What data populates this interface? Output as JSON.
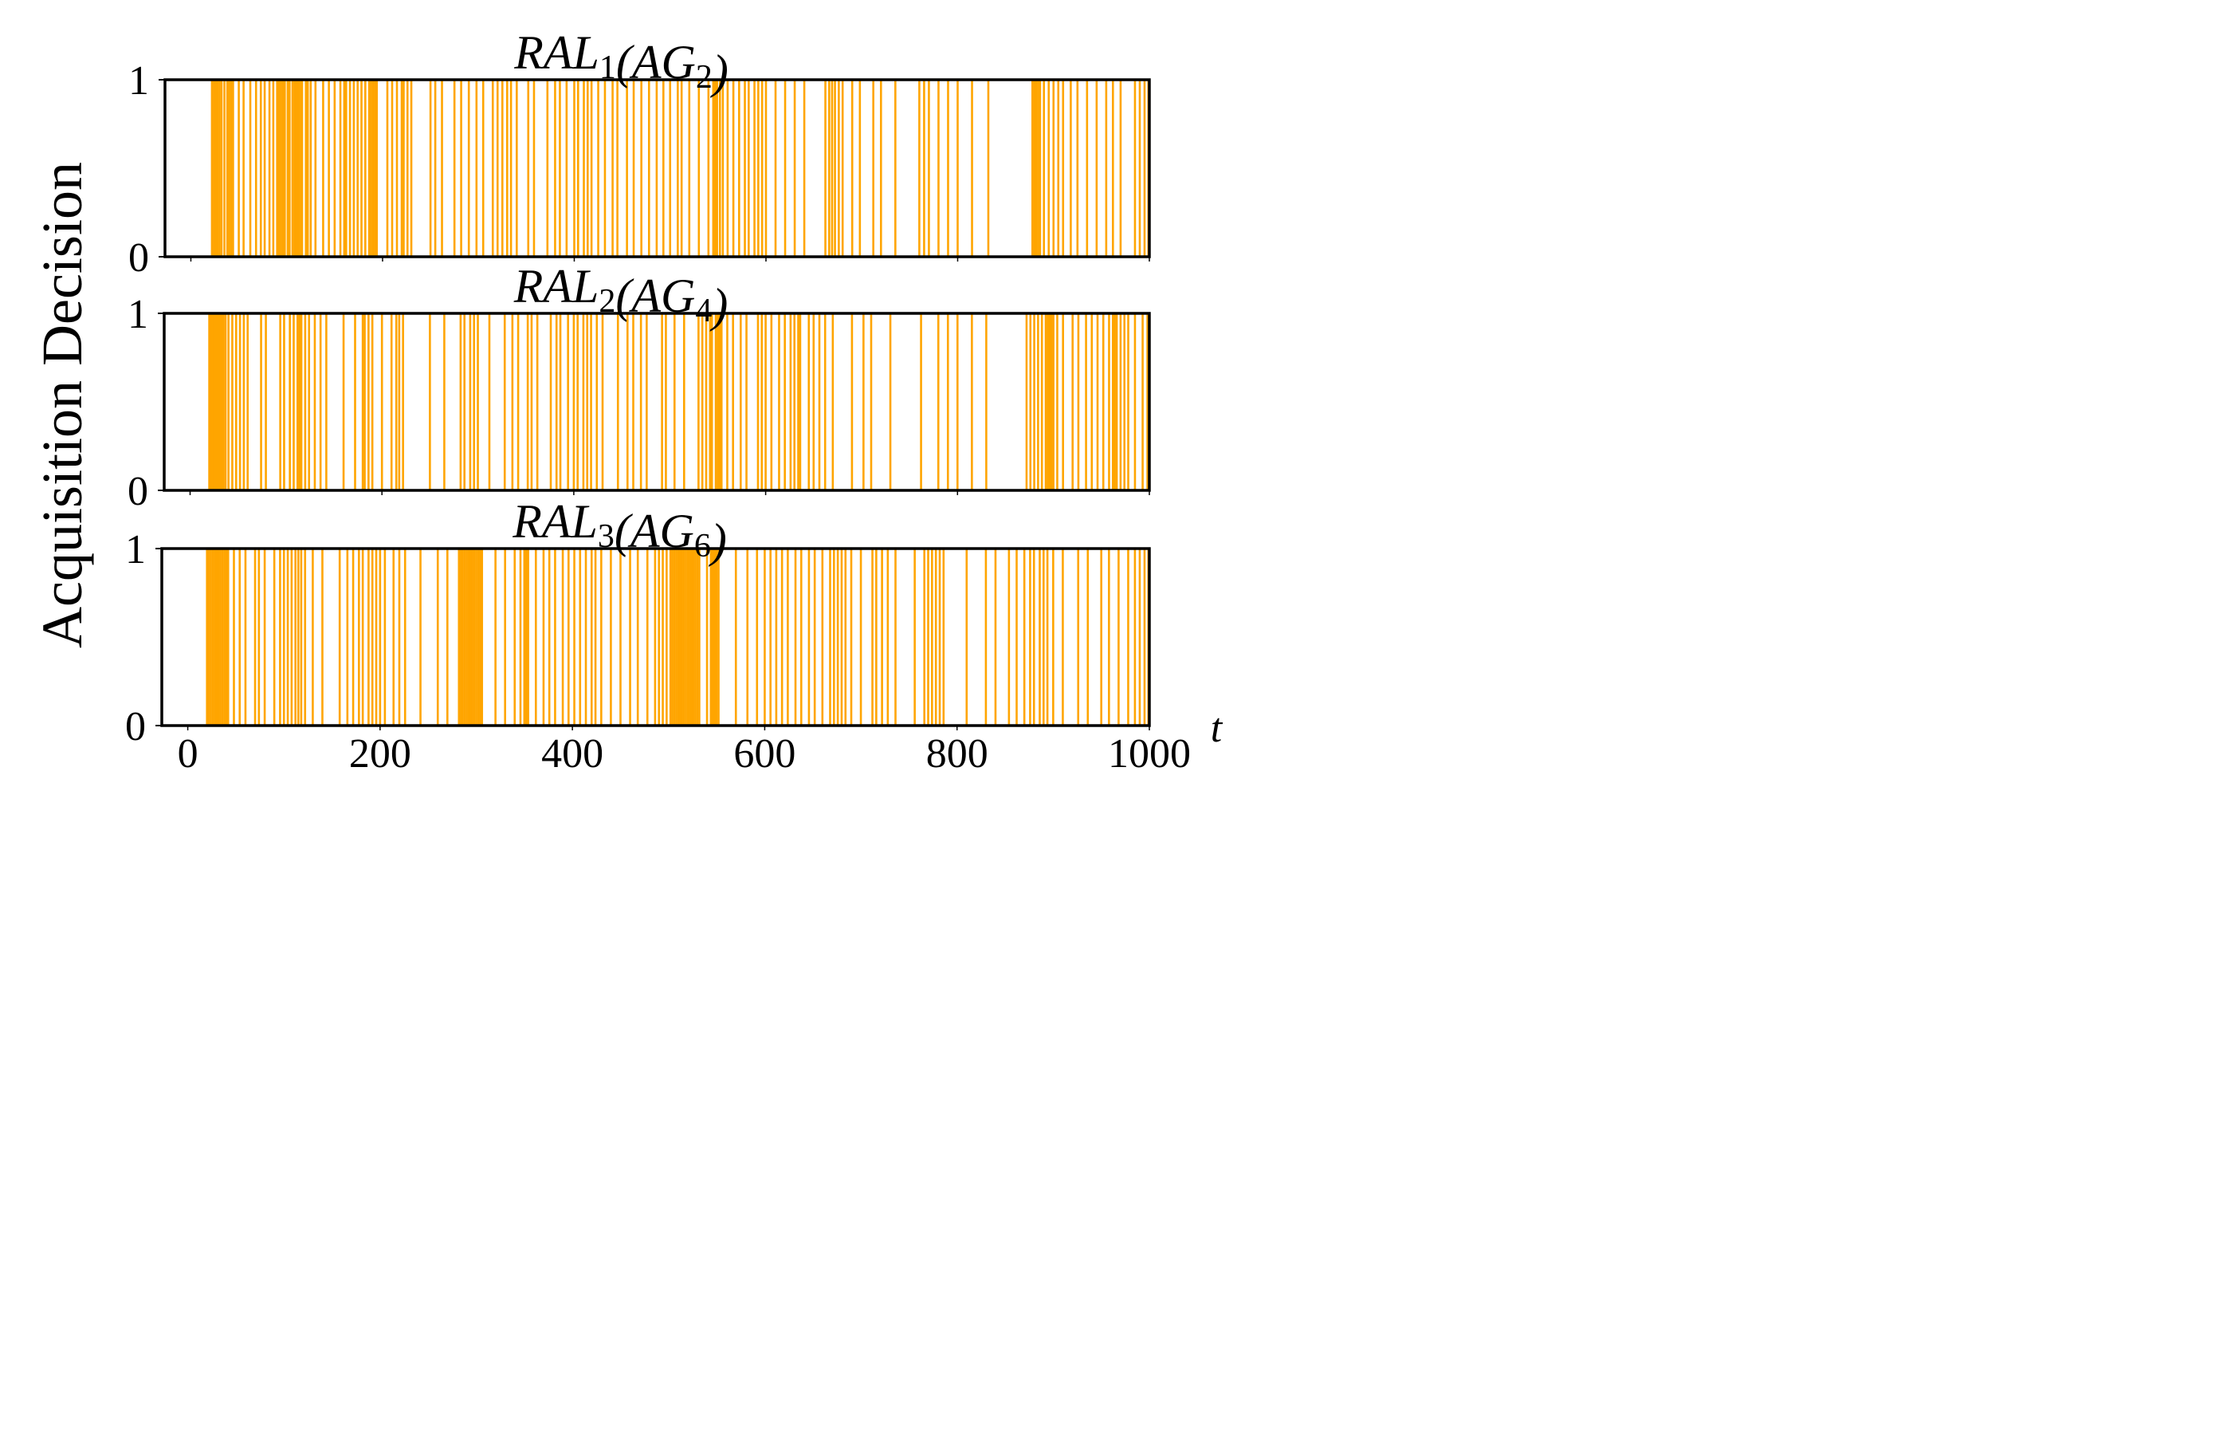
{
  "figure": {
    "ylabel": "Acquisition Decision",
    "xlabel": "t",
    "x_ticks": [
      "0",
      "200",
      "400",
      "600",
      "800",
      "1000"
    ],
    "y_ticks": [
      "0",
      "1"
    ]
  },
  "chart_data": [
    {
      "type": "event",
      "title_main": "RAL",
      "title_sub1": "1",
      "title_paren_open": "(AG",
      "title_sub2": "2",
      "title_paren_close": ")",
      "title": "RAL1(AG2)",
      "xlim": [
        -27,
        1000
      ],
      "ylim": [
        0,
        1
      ],
      "color": "#FFA500",
      "events": [
        22,
        24,
        26,
        28,
        30,
        32,
        35,
        38,
        40,
        42,
        44,
        50,
        55,
        62,
        68,
        73,
        77,
        82,
        86,
        90,
        92,
        94,
        96,
        98,
        101,
        103,
        106,
        108,
        110,
        112,
        114,
        116,
        120,
        122,
        125,
        130,
        138,
        144,
        150,
        156,
        160,
        162,
        166,
        170,
        174,
        178,
        182,
        186,
        188,
        190,
        192,
        194,
        205,
        210,
        215,
        220,
        222,
        226,
        230,
        250,
        255,
        262,
        275,
        282,
        290,
        298,
        305,
        315,
        320,
        325,
        330,
        334,
        340,
        352,
        358,
        372,
        380,
        385,
        392,
        400,
        404,
        410,
        414,
        418,
        425,
        432,
        440,
        445,
        455,
        462,
        470,
        478,
        486,
        493,
        500,
        508,
        512,
        520,
        530,
        540,
        545,
        547,
        549,
        552,
        555,
        560,
        566,
        572,
        578,
        582,
        588,
        592,
        596,
        600,
        610,
        620,
        630,
        640,
        662,
        666,
        669,
        672,
        676,
        680,
        690,
        698,
        712,
        720,
        735,
        760,
        765,
        770,
        780,
        790,
        800,
        815,
        832,
        878,
        880,
        882,
        884,
        886,
        890,
        895,
        900,
        905,
        910,
        918,
        925,
        935,
        945,
        955,
        962,
        970,
        985,
        990,
        995,
        999
      ]
    },
    {
      "type": "event",
      "title_main": "RAL",
      "title_sub1": "2",
      "title_paren_open": "(AG",
      "title_sub2": "4",
      "title_paren_close": ")",
      "title": "RAL2(AG4)",
      "xlim": [
        -27,
        1000
      ],
      "ylim": [
        0,
        1
      ],
      "color": "#FFA500",
      "events": [
        20,
        21,
        22,
        23,
        24,
        25,
        26,
        27,
        28,
        29,
        30,
        31,
        33,
        35,
        37,
        40,
        44,
        48,
        52,
        56,
        60,
        74,
        79,
        94,
        98,
        104,
        108,
        112,
        114,
        116,
        120,
        124,
        130,
        136,
        142,
        160,
        172,
        180,
        182,
        186,
        190,
        200,
        210,
        215,
        218,
        222,
        250,
        265,
        282,
        286,
        292,
        296,
        300,
        312,
        328,
        336,
        342,
        352,
        356,
        362,
        376,
        382,
        386,
        394,
        400,
        404,
        410,
        414,
        418,
        424,
        430,
        446,
        456,
        462,
        470,
        476,
        492,
        496,
        505,
        515,
        530,
        534,
        538,
        542,
        544,
        548,
        550,
        552,
        554,
        560,
        566,
        574,
        580,
        592,
        596,
        600,
        606,
        614,
        620,
        626,
        630,
        634,
        636,
        645,
        650,
        656,
        662,
        670,
        690,
        702,
        710,
        730,
        762,
        780,
        790,
        800,
        815,
        830,
        872,
        876,
        880,
        884,
        888,
        892,
        894,
        896,
        898,
        900,
        904,
        910,
        920,
        926,
        934,
        940,
        946,
        952,
        958,
        962,
        964,
        966,
        970,
        974,
        978,
        985,
        993,
        998
      ]
    },
    {
      "type": "event",
      "title_main": "RAL",
      "title_sub1": "3",
      "title_paren_open": "(AG",
      "title_sub2": "6",
      "title_paren_close": ")",
      "title": "RAL3(AG6)",
      "xlim": [
        -27,
        1000
      ],
      "ylim": [
        0,
        1
      ],
      "color": "#FFA500",
      "events": [
        20,
        22,
        24,
        26,
        28,
        30,
        32,
        34,
        36,
        38,
        40,
        42,
        48,
        54,
        60,
        70,
        74,
        80,
        90,
        96,
        100,
        104,
        108,
        112,
        115,
        118,
        122,
        130,
        140,
        158,
        166,
        172,
        178,
        182,
        188,
        192,
        196,
        200,
        205,
        214,
        220,
        226,
        242,
        260,
        270,
        282,
        284,
        286,
        288,
        290,
        292,
        294,
        296,
        298,
        300,
        302,
        304,
        306,
        320,
        330,
        340,
        346,
        350,
        352,
        354,
        362,
        370,
        376,
        382,
        390,
        396,
        402,
        408,
        414,
        420,
        424,
        430,
        440,
        450,
        460,
        468,
        478,
        486,
        490,
        494,
        498,
        502,
        504,
        506,
        508,
        510,
        512,
        514,
        516,
        518,
        520,
        522,
        524,
        526,
        528,
        530,
        532,
        540,
        544,
        546,
        548,
        550,
        552,
        570,
        582,
        592,
        600,
        606,
        612,
        618,
        624,
        632,
        638,
        646,
        652,
        660,
        668,
        672,
        676,
        680,
        684,
        690,
        700,
        712,
        716,
        722,
        728,
        736,
        756,
        766,
        770,
        774,
        778,
        782,
        786,
        810,
        830,
        840,
        854,
        862,
        870,
        876,
        880,
        886,
        890,
        894,
        900,
        910,
        926,
        936,
        950,
        958,
        968,
        978,
        985,
        990,
        995,
        999
      ]
    }
  ]
}
